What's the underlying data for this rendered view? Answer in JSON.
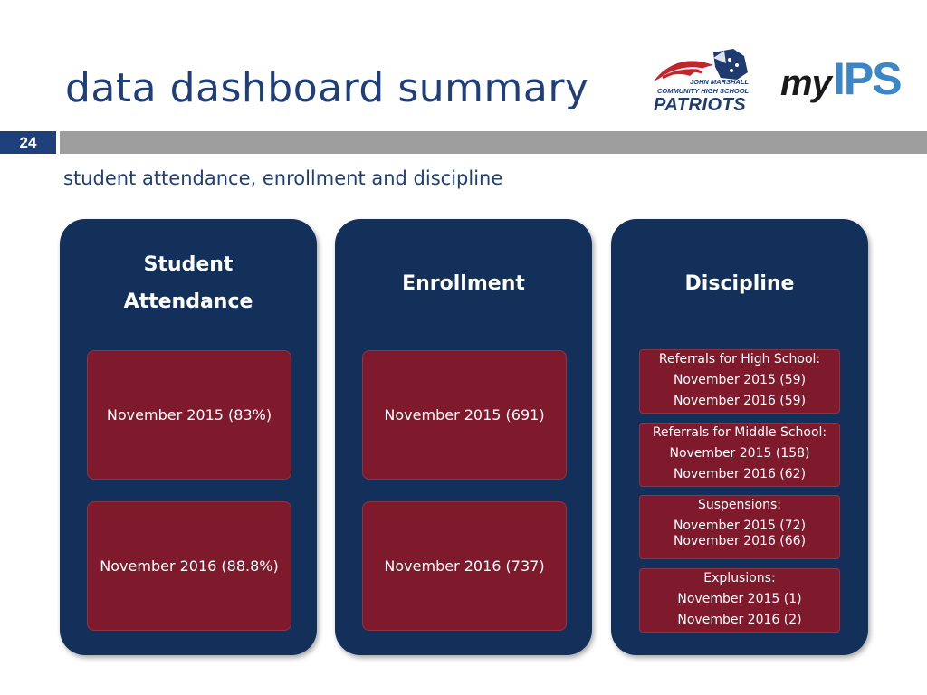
{
  "header": {
    "title": "data dashboard summary",
    "slide_number": "24",
    "subtitle": "student attendance, enrollment and discipline"
  },
  "logos": {
    "school": {
      "line1": "JOHN MARSHALL",
      "line2": "COMMUNITY HIGH SCHOOL",
      "line3": "PATRIOTS"
    },
    "district": {
      "my": "my",
      "ips": "IPS"
    }
  },
  "columns": {
    "attendance": {
      "heading_line1": "Student",
      "heading_line2": "Attendance",
      "items": [
        "November 2015 (83%)",
        "November 2016 (88.8%)"
      ]
    },
    "enrollment": {
      "heading": "Enrollment",
      "items": [
        "November 2015 (691)",
        "November 2016 (737)"
      ]
    },
    "discipline": {
      "heading": "Discipline",
      "groups": [
        {
          "title": "Referrals for High School:",
          "lines": [
            "November 2015 (59)",
            "November 2016 (59)"
          ]
        },
        {
          "title": "Referrals for Middle School:",
          "lines": [
            "November 2015 (158)",
            "November 2016 (62)"
          ]
        },
        {
          "title": "Suspensions:",
          "lines": [
            "November 2015 (72)",
            "November 2016 (66)"
          ]
        },
        {
          "title": "Explusions:",
          "lines": [
            "November 2015 (1)",
            "November 2016 (2)"
          ]
        }
      ]
    }
  },
  "colors": {
    "title_blue": "#1f3f7a",
    "column_navy": "#13305a",
    "card_maroon": "#7e1a2c",
    "bar_gray": "#9e9e9e",
    "ips_blue": "#3b86c6"
  }
}
